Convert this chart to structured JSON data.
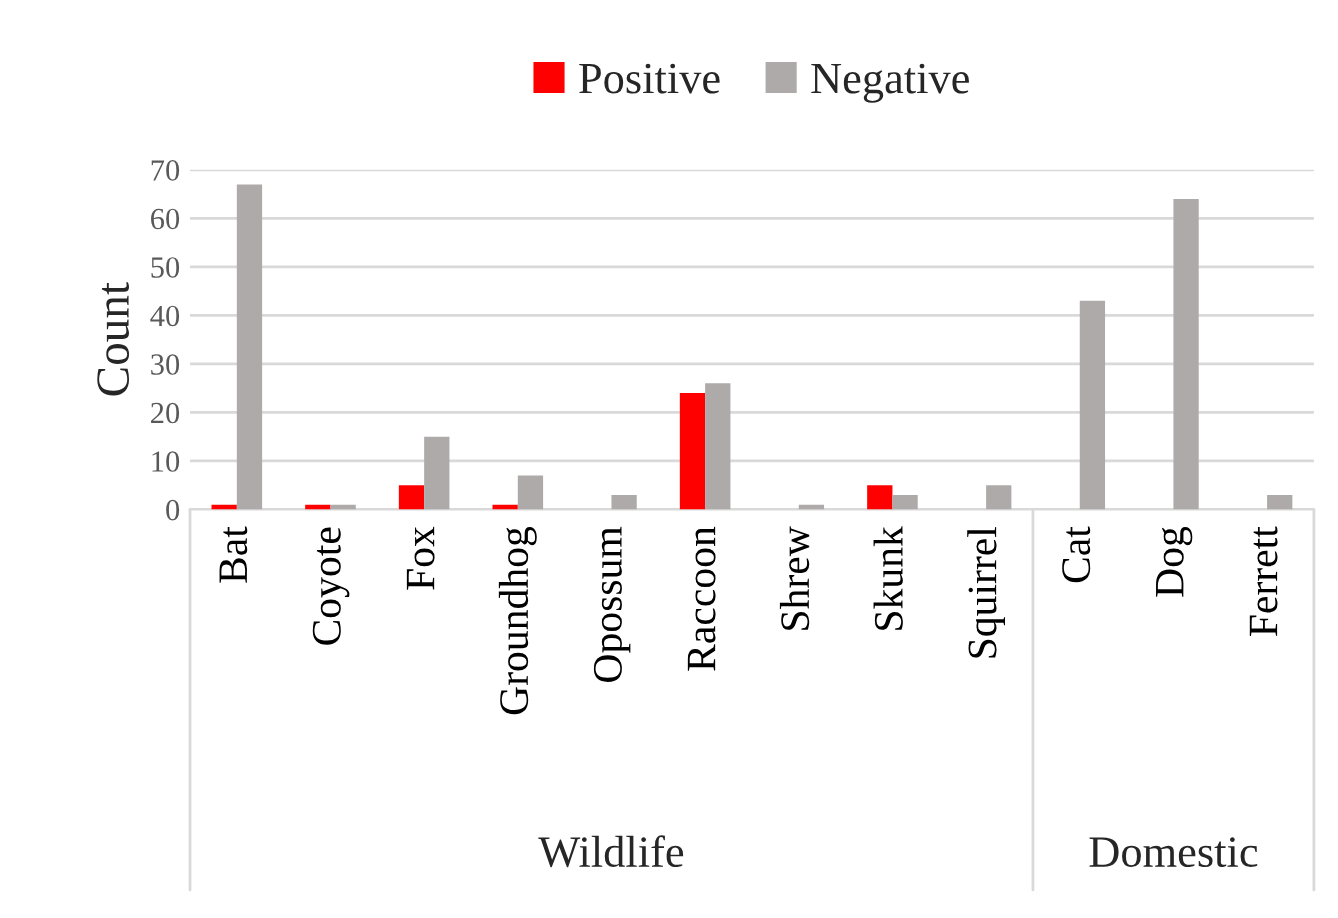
{
  "chart_data": {
    "type": "bar",
    "ylabel": "Count",
    "categories": [
      "Bat",
      "Coyote",
      "Fox",
      "Groundhog",
      "Opossum",
      "Raccoon",
      "Shrew",
      "Skunk",
      "Squirrel",
      "Cat",
      "Dog",
      "Ferrett"
    ],
    "series": [
      {
        "name": "Positive",
        "color": "#ff0000",
        "values": [
          1,
          1,
          5,
          1,
          0,
          24,
          0,
          5,
          0,
          0,
          0,
          0
        ]
      },
      {
        "name": "Negative",
        "color": "#aeaaaa",
        "values": [
          67,
          1,
          15,
          7,
          3,
          26,
          1,
          3,
          5,
          43,
          64,
          3
        ]
      }
    ],
    "ylim": [
      0,
      70
    ],
    "yticks": [
      0,
      10,
      20,
      30,
      40,
      50,
      60,
      70
    ],
    "grid": "y",
    "legend": "top",
    "annotations": [
      "Wildlife",
      "Domestic"
    ]
  }
}
